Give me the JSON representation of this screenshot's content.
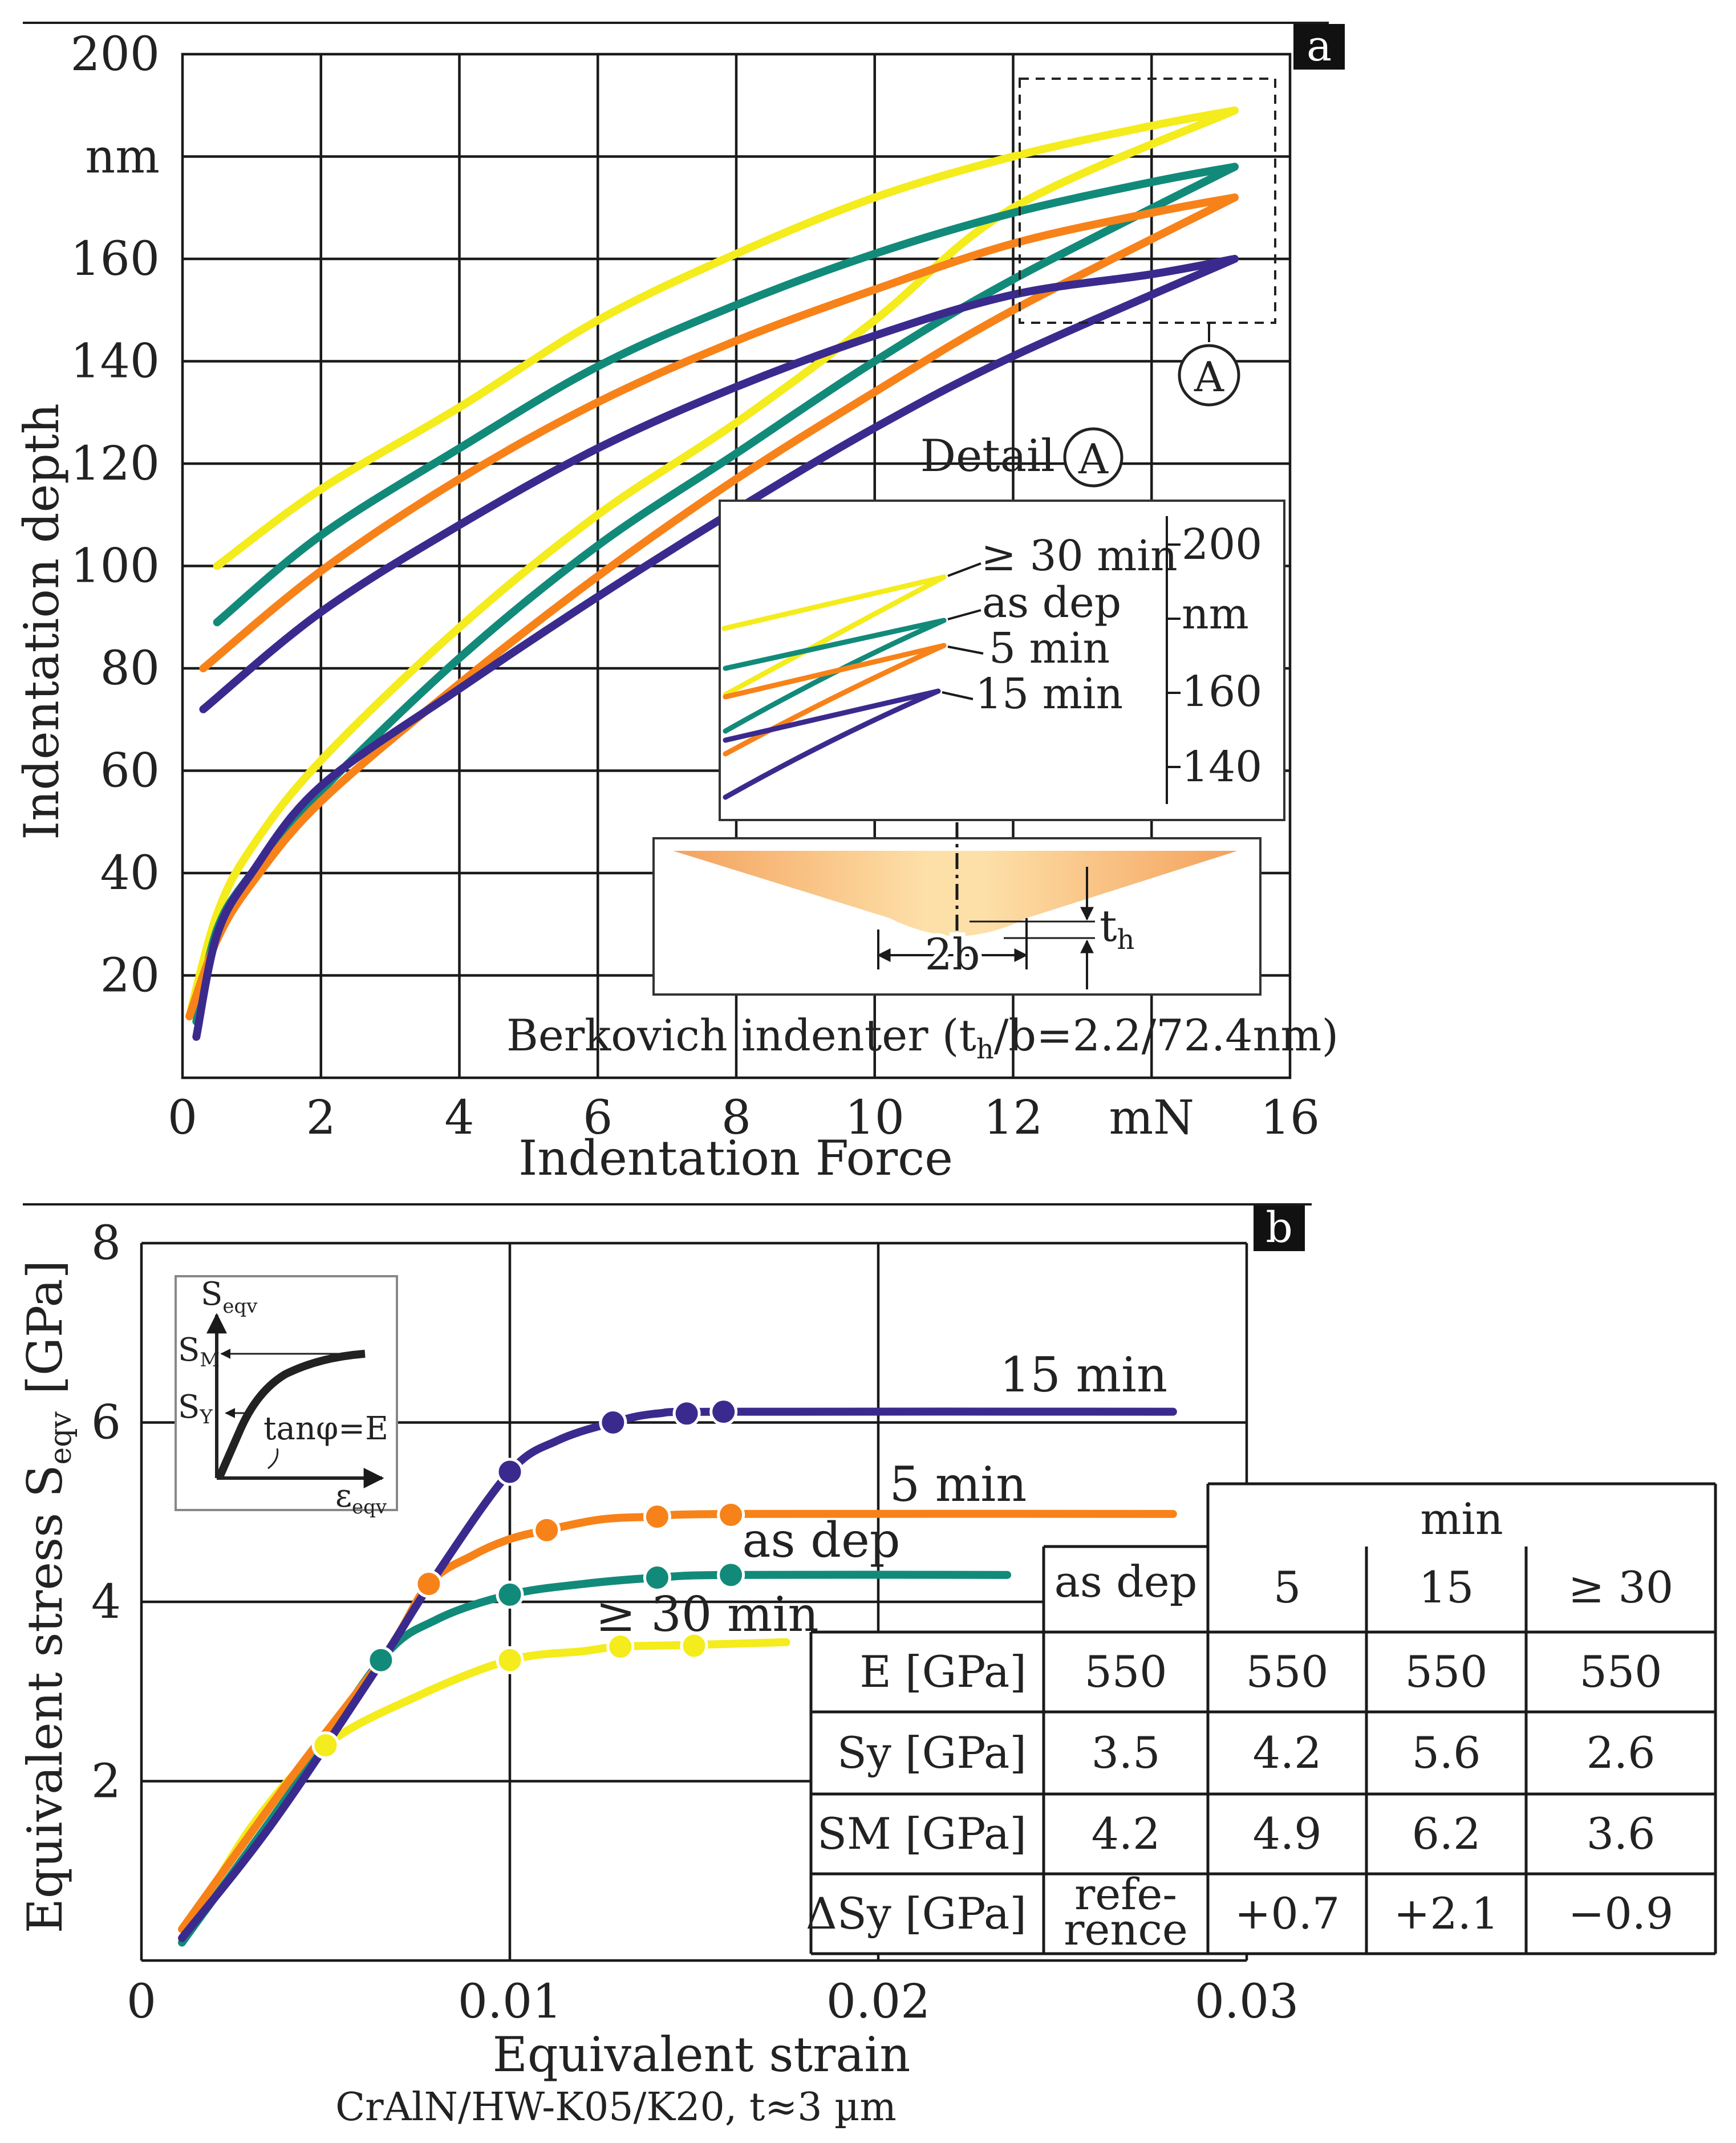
{
  "colors": {
    "yellow": "#f4ec1c",
    "teal": "#128a7a",
    "orange": "#f78219",
    "purple": "#3b2a8e",
    "ink": "#1a1a1a"
  },
  "chart_data": [
    {
      "type": "line",
      "panel": "a",
      "xlabel": "Indentation Force",
      "ylabel": "Indentation  depth",
      "x_unit": "mN",
      "y_unit": "nm",
      "xlim": [
        0,
        16
      ],
      "ylim": [
        0,
        200
      ],
      "x_ticks": [
        "0",
        "2",
        "4",
        "6",
        "8",
        "10",
        "12",
        "mN",
        "16"
      ],
      "y_ticks": [
        "20",
        "40",
        "60",
        "80",
        "100",
        "120",
        "140",
        "160",
        "nm",
        "200"
      ],
      "series": [
        {
          "name": "≥ 30 min",
          "color": "yellow",
          "loading": [
            [
              0.1,
              12
            ],
            [
              0.5,
              32
            ],
            [
              1,
              45
            ],
            [
              2,
              62
            ],
            [
              4,
              88
            ],
            [
              6,
              110
            ],
            [
              8,
              128
            ],
            [
              10,
              148
            ],
            [
              12,
              170
            ],
            [
              15.2,
              189
            ]
          ],
          "unloading": [
            [
              15.2,
              189
            ],
            [
              14,
              186
            ],
            [
              12,
              180
            ],
            [
              10,
              172
            ],
            [
              8,
              161
            ],
            [
              6,
              148
            ],
            [
              4,
              131
            ],
            [
              2,
              115
            ],
            [
              0.5,
              100
            ]
          ]
        },
        {
          "name": "as dep",
          "color": "teal",
          "loading": [
            [
              0.2,
              11
            ],
            [
              0.5,
              29
            ],
            [
              1,
              40
            ],
            [
              2,
              56
            ],
            [
              4,
              82
            ],
            [
              6,
              104
            ],
            [
              8,
              122
            ],
            [
              10,
              140
            ],
            [
              12,
              156
            ],
            [
              15.2,
              178
            ]
          ],
          "unloading": [
            [
              15.2,
              178
            ],
            [
              14,
              175
            ],
            [
              12,
              169
            ],
            [
              10,
              161
            ],
            [
              8,
              151
            ],
            [
              6,
              139
            ],
            [
              4,
              123
            ],
            [
              2,
              106
            ],
            [
              0.5,
              89
            ]
          ]
        },
        {
          "name": "5 min",
          "color": "orange",
          "loading": [
            [
              0.1,
              12
            ],
            [
              0.5,
              27
            ],
            [
              1,
              38
            ],
            [
              2,
              54
            ],
            [
              4,
              77
            ],
            [
              6,
              98
            ],
            [
              8,
              117
            ],
            [
              10,
              134
            ],
            [
              12,
              150
            ],
            [
              15.2,
              172
            ]
          ],
          "unloading": [
            [
              15.2,
              172
            ],
            [
              14,
              169
            ],
            [
              12,
              163
            ],
            [
              10,
              154
            ],
            [
              8,
              144
            ],
            [
              6,
              132
            ],
            [
              4,
              117
            ],
            [
              2,
              99
            ],
            [
              0.3,
              80
            ]
          ]
        },
        {
          "name": "15 min",
          "color": "purple",
          "loading": [
            [
              0.2,
              8
            ],
            [
              0.5,
              28
            ],
            [
              1,
              40
            ],
            [
              2,
              57
            ],
            [
              4,
              76
            ],
            [
              6,
              94
            ],
            [
              8,
              111
            ],
            [
              10,
              127
            ],
            [
              12,
              141
            ],
            [
              15.2,
              160
            ]
          ],
          "unloading": [
            [
              15.2,
              160
            ],
            [
              14,
              157
            ],
            [
              12,
              153
            ],
            [
              10,
              145
            ],
            [
              8,
              135
            ],
            [
              6,
              123
            ],
            [
              4,
              108
            ],
            [
              2,
              91
            ],
            [
              0.3,
              72
            ]
          ]
        }
      ],
      "detail_label": "Detail",
      "detail_marker": "A",
      "inset": {
        "y_ticks": [
          "200",
          "nm",
          "160",
          "140"
        ],
        "labels": [
          "≥ 30 min",
          "as dep",
          "5 min",
          "15 min"
        ]
      },
      "indenter": {
        "caption": "Berkovich indenter (t",
        "caption_sub": "h",
        "caption_tail": "/b=2.2/72.4nm)",
        "width_label": "2b",
        "depth_label": "t",
        "depth_sub": "h"
      },
      "panel_label": "a"
    },
    {
      "type": "line",
      "panel": "b",
      "xlabel": "Equivalent strain",
      "ylabel": "Equivalent  stress  S",
      "ylabel_sub": "eqv",
      "ylabel_unit": "[GPa]",
      "xlim": [
        0,
        0.03
      ],
      "ylim": [
        0,
        8
      ],
      "x_ticks": [
        "0",
        "0.01",
        "0.02",
        "0.03"
      ],
      "y_ticks": [
        "2",
        "4",
        "6",
        "8"
      ],
      "series": [
        {
          "name": "15 min",
          "color": "purple",
          "points": [
            [
              0.0011,
              0.25
            ],
            [
              0.0035,
              1.5
            ],
            [
              0.0063,
              3.2
            ],
            [
              0.008,
              4.3
            ],
            [
              0.01,
              5.45
            ],
            [
              0.0113,
              5.8
            ],
            [
              0.0128,
              6.0
            ],
            [
              0.014,
              6.1
            ],
            [
              0.016,
              6.12
            ],
            [
              0.028,
              6.12
            ]
          ],
          "markers": [
            [
              0.01,
              5.45
            ],
            [
              0.0128,
              6.0
            ],
            [
              0.0148,
              6.1
            ],
            [
              0.0158,
              6.12
            ]
          ]
        },
        {
          "name": "5 min",
          "color": "orange",
          "points": [
            [
              0.0011,
              0.35
            ],
            [
              0.004,
              2.0
            ],
            [
              0.0066,
              3.4
            ],
            [
              0.0078,
              4.2
            ],
            [
              0.009,
              4.52
            ],
            [
              0.01,
              4.7
            ],
            [
              0.011,
              4.8
            ],
            [
              0.0125,
              4.92
            ],
            [
              0.014,
              4.95
            ],
            [
              0.016,
              4.98
            ],
            [
              0.028,
              4.98
            ]
          ],
          "markers": [
            [
              0.0078,
              4.2
            ],
            [
              0.011,
              4.8
            ],
            [
              0.014,
              4.95
            ],
            [
              0.016,
              4.97
            ]
          ]
        },
        {
          "name": "as dep",
          "color": "teal",
          "points": [
            [
              0.0011,
              0.2
            ],
            [
              0.004,
              1.85
            ],
            [
              0.0065,
              3.35
            ],
            [
              0.008,
              3.8
            ],
            [
              0.01,
              4.08
            ],
            [
              0.012,
              4.2
            ],
            [
              0.014,
              4.27
            ],
            [
              0.016,
              4.3
            ],
            [
              0.0235,
              4.3
            ]
          ],
          "markers": [
            [
              0.0065,
              3.35
            ],
            [
              0.01,
              4.08
            ],
            [
              0.014,
              4.27
            ],
            [
              0.016,
              4.3
            ]
          ]
        },
        {
          "name": "≥ 30 min",
          "color": "yellow",
          "points": [
            [
              0.0011,
              0.2
            ],
            [
              0.003,
              1.5
            ],
            [
              0.005,
              2.4
            ],
            [
              0.0075,
              2.95
            ],
            [
              0.01,
              3.35
            ],
            [
              0.012,
              3.45
            ],
            [
              0.013,
              3.5
            ],
            [
              0.015,
              3.52
            ],
            [
              0.0175,
              3.55
            ]
          ],
          "markers": [
            [
              0.005,
              2.4
            ],
            [
              0.01,
              3.35
            ],
            [
              0.013,
              3.5
            ],
            [
              0.015,
              3.51
            ]
          ]
        }
      ],
      "inset": {
        "s_label": "S",
        "s_sub": "eqv",
        "sm_label": "S",
        "sm_sub": "M",
        "sy_label": "S",
        "sy_sub": "Y",
        "tan_label": "tanφ=E",
        "eps_label": "ε",
        "eps_sub": "eqv"
      },
      "table": {
        "group_header": "min",
        "col_headers": [
          "as dep",
          "5",
          "15",
          "≥ 30"
        ],
        "rows": [
          {
            "label": "E [GPa]",
            "values": [
              "550",
              "550",
              "550",
              "550"
            ]
          },
          {
            "label": "Sy [GPa]",
            "values": [
              "3.5",
              "4.2",
              "5.6",
              "2.6"
            ]
          },
          {
            "label": "SM [GPa]",
            "values": [
              "4.2",
              "4.9",
              "6.2",
              "3.6"
            ]
          },
          {
            "label": "ΔSy [GPa]",
            "values": [
              "refe-\nrence",
              "+0.7",
              "+2.1",
              "−0.9"
            ]
          }
        ]
      },
      "caption": "CrAlN/HW-K05/K20, t≈3 µm",
      "panel_label": "b"
    }
  ]
}
